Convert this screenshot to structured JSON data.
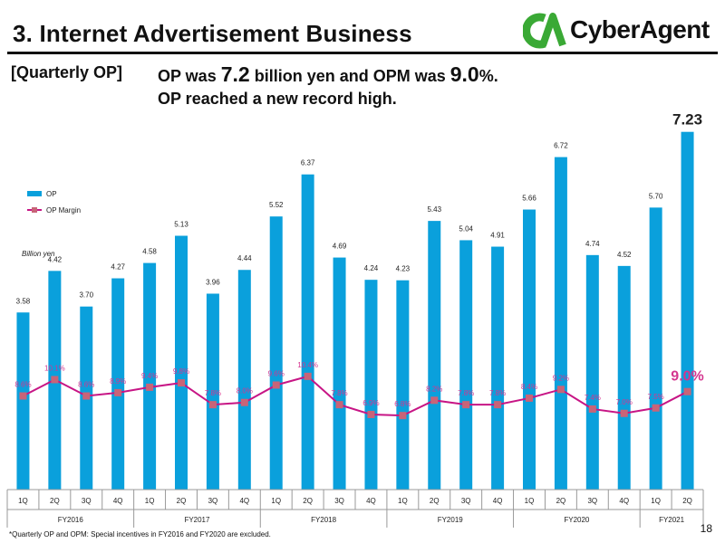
{
  "page": {
    "title": "3. Internet Advertisement Business",
    "logo_text": "CyberAgent",
    "logo_mark": "CA",
    "section_label": "[Quarterly OP]",
    "headline_line1_a": "OP was ",
    "headline_line1_b": "7.2",
    "headline_line1_c": " billion yen and OPM was ",
    "headline_line1_d": "9.0",
    "headline_line1_e": "%.",
    "headline_line2": "OP reached a new record high.",
    "footnote": "*Quarterly OP and OPM: Special incentives in FY2016 and FY2020 are excluded.",
    "page_number": "18",
    "colors": {
      "bar": "#0aa0dc",
      "line": "#c71585",
      "marker": "#c86478",
      "label_margin": "#d4358f",
      "logo_green": "#3aa935"
    }
  },
  "chart_data": {
    "type": "bar",
    "unit_label": "Billion yen",
    "categories": [
      "1Q",
      "2Q",
      "3Q",
      "4Q",
      "1Q",
      "2Q",
      "3Q",
      "4Q",
      "1Q",
      "2Q",
      "3Q",
      "4Q",
      "1Q",
      "2Q",
      "3Q",
      "4Q",
      "1Q",
      "2Q",
      "3Q",
      "4Q",
      "1Q",
      "2Q"
    ],
    "groups": [
      {
        "label": "FY2016",
        "count": 4
      },
      {
        "label": "FY2017",
        "count": 4
      },
      {
        "label": "FY2018",
        "count": 4
      },
      {
        "label": "FY2019",
        "count": 4
      },
      {
        "label": "FY2020",
        "count": 4
      },
      {
        "label": "FY2021",
        "count": 2
      }
    ],
    "series": [
      {
        "name": "OP",
        "type": "bar",
        "values": [
          3.58,
          4.42,
          3.7,
          4.27,
          4.58,
          5.13,
          3.96,
          4.44,
          5.52,
          6.37,
          4.69,
          4.24,
          4.23,
          5.43,
          5.04,
          4.91,
          5.66,
          6.72,
          4.74,
          4.52,
          5.7,
          7.23
        ],
        "labels": [
          "3.58",
          "4.42",
          "3.70",
          "4.27",
          "4.58",
          "5.13",
          "3.96",
          "4.44",
          "5.52",
          "6.37",
          "4.69",
          "4.24",
          "4.23",
          "5.43",
          "5.04",
          "4.91",
          "5.66",
          "6.72",
          "4.74",
          "4.52",
          "5.70",
          "7.23"
        ]
      },
      {
        "name": "OP Margin",
        "type": "line",
        "values": [
          8.6,
          10.1,
          8.6,
          8.9,
          9.4,
          9.8,
          7.8,
          8.0,
          9.6,
          10.4,
          7.8,
          6.9,
          6.8,
          8.2,
          7.8,
          7.8,
          8.4,
          9.2,
          7.4,
          7.0,
          7.5,
          9.0
        ],
        "labels": [
          "8.6%",
          "10.1%",
          "8.6%",
          "8.9%",
          "9.4%",
          "9.8%",
          "7.8%",
          "8.0%",
          "9.6%",
          "10.4%",
          "7.8%",
          "6.9%",
          "6.8%",
          "8.2%",
          "7.8%",
          "7.8%",
          "8.4%",
          "9.2%",
          "7.4%",
          "7.0%",
          "7.5%",
          "9.0%"
        ]
      }
    ],
    "ylim_bar": [
      0,
      7.7
    ],
    "ylim_margin": [
      0,
      30
    ],
    "grid": false,
    "legend_placement": "top-left"
  }
}
